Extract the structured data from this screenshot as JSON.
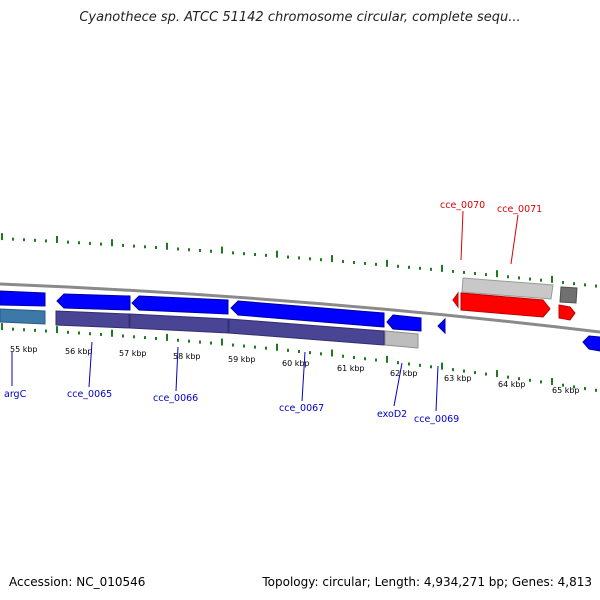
{
  "title": "Cyanothece sp. ATCC 51142 chromosome circular, complete sequ...",
  "footer": {
    "accession": "Accession: NC_010546",
    "summary": "Topology: circular; Length: 4,934,271 bp; Genes: 4,813"
  },
  "colors": {
    "forward_gene": "#0000ff",
    "reverse_gene_red": "#ff0000",
    "track_gray": "#a9a9a9",
    "label_blue": "#0000c8",
    "label_red": "#dc0000",
    "cds_purple": "#4a4494",
    "cds_steel": "#3c78a8",
    "tick_green": "#1f7a1f"
  },
  "kbp_labels": [
    "55 kbp",
    "56 kbp",
    "57 kbp",
    "58 kbp",
    "59 kbp",
    "60 kbp",
    "61 kbp",
    "62 kbp",
    "63 kbp",
    "64 kbp",
    "65 kbp"
  ],
  "gene_labels": {
    "argC": "argC",
    "cce_0065": "cce_0065",
    "cce_0066": "cce_0066",
    "cce_0067": "cce_0067",
    "exoD2": "exoD2",
    "cce_0069": "cce_0069",
    "cce_0070": "cce_0070",
    "cce_0071": "cce_0071"
  }
}
